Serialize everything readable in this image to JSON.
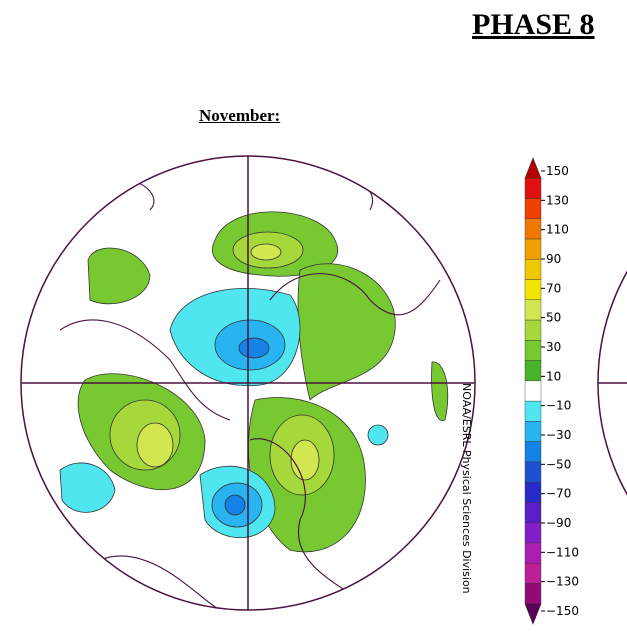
{
  "header": {
    "title": "PHASE 8"
  },
  "map": {
    "title": "November:",
    "credit": "NOAA/ESRL Physical Sciences Division"
  },
  "colorbar": {
    "labels": [
      "150",
      "130",
      "110",
      "90",
      "70",
      "50",
      "30",
      "10",
      "−10",
      "−30",
      "−50",
      "−70",
      "−90",
      "−110",
      "−130",
      "−150"
    ],
    "colors": [
      "#b40000",
      "#e01010",
      "#f04000",
      "#f07800",
      "#f0a000",
      "#f0c800",
      "#f0e600",
      "#d2e650",
      "#a6d83c",
      "#78c832",
      "#48b428",
      "#ffffff",
      "#50e6f0",
      "#28b4f0",
      "#1482e6",
      "#1e50d2",
      "#2a2ac8",
      "#5a1ec8",
      "#821ec8",
      "#aa1eb4",
      "#be1e96",
      "#960a78",
      "#5a005a"
    ]
  }
}
